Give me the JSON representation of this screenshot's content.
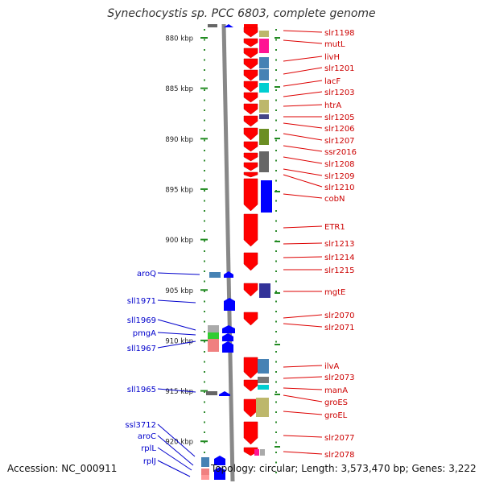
{
  "title": "Synechocystis sp. PCC 6803, complete genome",
  "footer": {
    "accession": "Accession: NC_000911",
    "topology": "Topology: circular; Length: 3,573,470 bp; Genes: 3,222"
  },
  "axis": {
    "unit": "kbp",
    "ticks": [
      880,
      885,
      890,
      895,
      900,
      905,
      910,
      915,
      920
    ],
    "tick_labels": [
      "880 kbp",
      "885 kbp",
      "890 kbp",
      "895 kbp",
      "900 kbp",
      "905 kbp",
      "910 kbp",
      "915 kbp",
      "920 kbp"
    ]
  },
  "colors": {
    "forward_strand": "#ff0000",
    "reverse_strand": "#0000ff",
    "forward_label": "#cc0000",
    "reverse_label": "#0000cc",
    "backbone": "#888888",
    "dots": "#2e8b2e"
  },
  "forward_genes": [
    "slr1198",
    "mutL",
    "livH",
    "slr1201",
    "lacF",
    "slr1203",
    "htrA",
    "slr1205",
    "slr1206",
    "slr1207",
    "ssr2016",
    "slr1208",
    "slr1209",
    "slr1210",
    "cobN",
    "ETR1",
    "slr1213",
    "slr1214",
    "slr1215",
    "mgtE",
    "slr2070",
    "slr2071",
    "ilvA",
    "slr2073",
    "manA",
    "groES",
    "groEL",
    "slr2077",
    "slr2078"
  ],
  "reverse_genes": [
    "aroQ",
    "sll1971",
    "sll1969",
    "pmgA",
    "sll1967",
    "sll1965",
    "ssl3712",
    "aroC",
    "rplL",
    "rplJ"
  ]
}
